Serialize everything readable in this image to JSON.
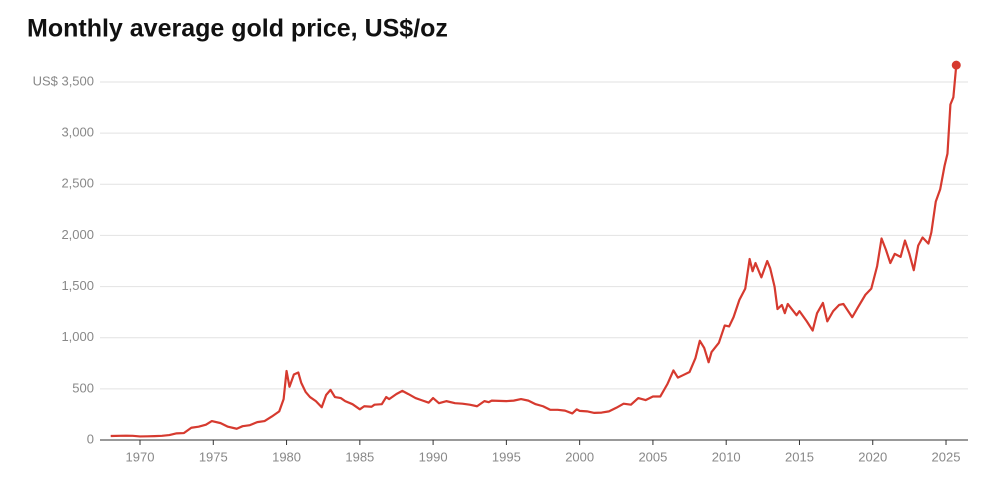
{
  "chart_data": {
    "type": "line",
    "title": "Monthly average gold price, US$/oz",
    "x": [
      1968.0,
      1969.0,
      1969.5,
      1970.0,
      1970.5,
      1971.0,
      1971.5,
      1972.0,
      1972.5,
      1973.0,
      1973.5,
      1974.0,
      1974.5,
      1974.9,
      1975.5,
      1976.0,
      1976.6,
      1977.0,
      1977.5,
      1978.0,
      1978.5,
      1979.0,
      1979.5,
      1979.8,
      1980.0,
      1980.2,
      1980.5,
      1980.8,
      1981.0,
      1981.3,
      1981.6,
      1982.0,
      1982.4,
      1982.7,
      1983.0,
      1983.3,
      1983.7,
      1984.0,
      1984.5,
      1985.0,
      1985.3,
      1985.8,
      1986.0,
      1986.5,
      1986.8,
      1987.0,
      1987.5,
      1987.9,
      1988.3,
      1988.8,
      1989.2,
      1989.7,
      1990.0,
      1990.4,
      1990.9,
      1991.5,
      1992.0,
      1992.5,
      1993.0,
      1993.5,
      1993.8,
      1994.0,
      1995.0,
      1995.5,
      1996.0,
      1996.5,
      1997.0,
      1997.5,
      1998.0,
      1998.5,
      1999.0,
      1999.5,
      1999.8,
      2000.0,
      2000.5,
      2001.0,
      2001.5,
      2002.0,
      2002.5,
      2003.0,
      2003.5,
      2004.0,
      2004.5,
      2005.0,
      2005.5,
      2006.0,
      2006.4,
      2006.7,
      2007.0,
      2007.5,
      2007.9,
      2008.2,
      2008.5,
      2008.8,
      2009.0,
      2009.5,
      2009.9,
      2010.2,
      2010.5,
      2010.9,
      2011.3,
      2011.6,
      2011.8,
      2012.0,
      2012.4,
      2012.8,
      2013.0,
      2013.3,
      2013.5,
      2013.8,
      2014.0,
      2014.2,
      2014.8,
      2015.0,
      2015.5,
      2015.9,
      2016.2,
      2016.6,
      2016.9,
      2017.3,
      2017.7,
      2018.0,
      2018.6,
      2019.0,
      2019.5,
      2019.9,
      2020.3,
      2020.6,
      2020.9,
      2021.2,
      2021.5,
      2021.9,
      2022.2,
      2022.5,
      2022.8,
      2023.1,
      2023.4,
      2023.8,
      2024.0,
      2024.3,
      2024.6,
      2024.9,
      2025.1,
      2025.3,
      2025.5,
      2025.7
    ],
    "values": [
      39,
      42,
      41,
      35,
      36,
      38,
      41,
      48,
      65,
      68,
      120,
      130,
      150,
      185,
      165,
      130,
      110,
      135,
      145,
      175,
      185,
      230,
      280,
      400,
      675,
      520,
      640,
      660,
      560,
      470,
      420,
      380,
      320,
      440,
      490,
      420,
      410,
      380,
      350,
      300,
      330,
      325,
      345,
      350,
      420,
      400,
      450,
      480,
      450,
      410,
      390,
      365,
      410,
      360,
      380,
      360,
      355,
      345,
      330,
      380,
      370,
      385,
      380,
      385,
      400,
      385,
      350,
      330,
      295,
      295,
      287,
      260,
      300,
      285,
      280,
      265,
      268,
      280,
      315,
      355,
      345,
      410,
      390,
      425,
      425,
      550,
      680,
      610,
      630,
      665,
      800,
      970,
      900,
      760,
      860,
      950,
      1120,
      1110,
      1200,
      1370,
      1480,
      1770,
      1650,
      1730,
      1590,
      1750,
      1680,
      1500,
      1280,
      1320,
      1240,
      1330,
      1220,
      1260,
      1160,
      1070,
      1240,
      1340,
      1160,
      1260,
      1320,
      1330,
      1200,
      1300,
      1420,
      1480,
      1700,
      1970,
      1860,
      1730,
      1820,
      1790,
      1950,
      1820,
      1660,
      1900,
      1980,
      1920,
      2030,
      2330,
      2450,
      2680,
      2800,
      3280,
      3350,
      3665
    ],
    "color": "#d63a2f",
    "xlim": [
      1967.27,
      2026.5
    ],
    "xticks": [
      1970,
      1975,
      1980,
      1985,
      1990,
      1995,
      2000,
      2005,
      2010,
      2015,
      2020,
      2025
    ],
    "ylim": [
      0,
      3500
    ],
    "yticks": [
      0,
      500,
      {
        "value": 1000,
        "label": "1,000"
      },
      {
        "value": 1500,
        "label": "1,500"
      },
      {
        "value": 2000,
        "label": "2,000"
      },
      {
        "value": 2500,
        "label": "2,500"
      },
      {
        "value": 3000,
        "label": "3,000"
      },
      {
        "value": 3500,
        "label": "US$ 3,500"
      }
    ],
    "grid": true
  }
}
